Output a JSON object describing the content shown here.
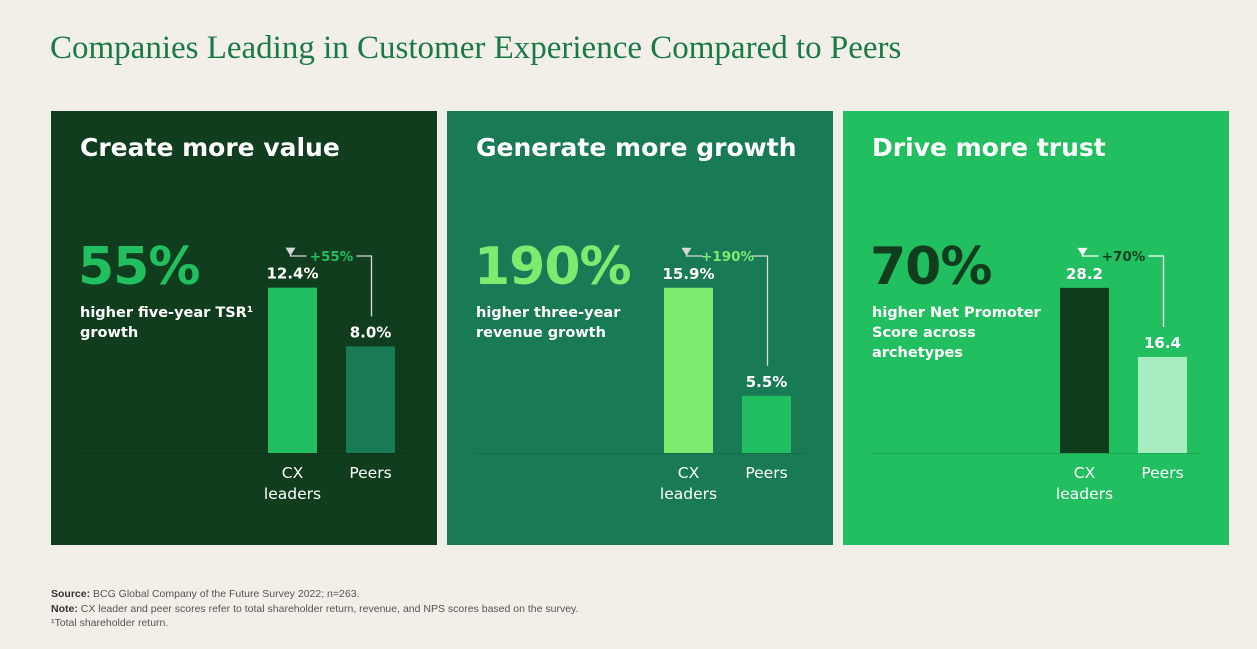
{
  "title": "Companies Leading in Customer Experience Compared to Peers",
  "panels": [
    {
      "heading": "Create more value",
      "stat": "55%",
      "description": "higher five-year TSR¹ growth",
      "colors": {
        "bg": "#0f3d1e",
        "stat": "#22bf60",
        "leader_bar": "#22bf60",
        "peer_bar": "#197a56",
        "diff_text": "#22bf60",
        "line": "#d9d9d9"
      }
    },
    {
      "heading": "Generate more growth",
      "stat": "190%",
      "description": "higher three-year revenue growth",
      "colors": {
        "bg": "#197a56",
        "stat": "#7dea70",
        "leader_bar": "#7dea70",
        "peer_bar": "#22bf60",
        "diff_text": "#7dea70",
        "line": "#d9d9d9"
      }
    },
    {
      "heading": "Drive more trust",
      "stat": "70%",
      "description": "higher Net Promoter Score across archetypes",
      "colors": {
        "bg": "#22bf60",
        "stat": "#0f3d1e",
        "leader_bar": "#0f3d1e",
        "peer_bar": "#a6eec0",
        "diff_text": "#0f3d1e",
        "line": "#ffffff"
      }
    }
  ],
  "chart_data": [
    {
      "type": "bar",
      "categories": [
        "CX leaders",
        "Peers"
      ],
      "values": [
        12.4,
        8.0
      ],
      "value_labels": [
        "12.4%",
        "8.0%"
      ],
      "difference_label": "+55%",
      "title": "Create more value",
      "ylim": [
        0,
        15.9
      ]
    },
    {
      "type": "bar",
      "categories": [
        "CX leaders",
        "Peers"
      ],
      "values": [
        15.9,
        5.5
      ],
      "value_labels": [
        "15.9%",
        "5.5%"
      ],
      "difference_label": "+190%",
      "title": "Generate more growth",
      "ylim": [
        0,
        20.4
      ]
    },
    {
      "type": "bar",
      "categories": [
        "CX leaders",
        "Peers"
      ],
      "values": [
        28.2,
        16.4
      ],
      "value_labels": [
        "28.2",
        "16.4"
      ],
      "difference_label": "+70%",
      "title": "Drive more trust",
      "ylim": [
        0,
        36.2
      ]
    }
  ],
  "footnotes": {
    "source_label": "Source:",
    "source_text": " BCG Global Company of the Future Survey 2022; n=263.",
    "note_label": "Note:",
    "note_text": " CX leader and peer scores refer to total shareholder return, revenue, and NPS scores based on the survey.",
    "footnote": "¹Total shareholder return."
  }
}
